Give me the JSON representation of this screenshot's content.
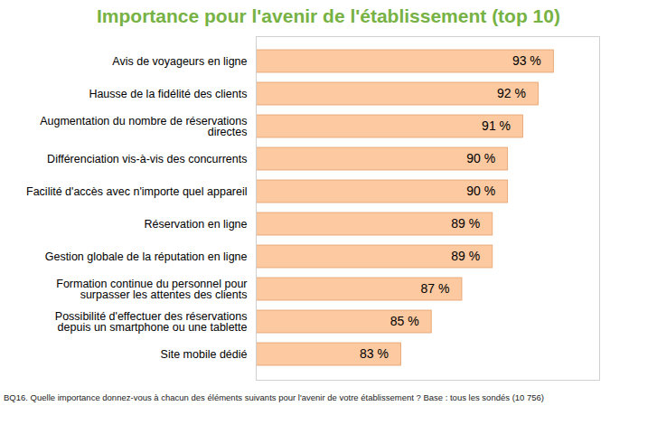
{
  "chart_data": {
    "type": "bar",
    "orientation": "horizontal",
    "title": "Importance pour l'avenir de l'établissement (top 10)",
    "caption": "BQ16. Quelle importance donnez-vous à chacun des éléments suivants pour l'avenir de votre établissement ? Base : tous les sondés (10 756)",
    "categories": [
      "Avis de voyageurs en ligne",
      "Hausse de la fidélité des clients",
      "Augmentation du nombre de réservations directes",
      "Différenciation vis-à-vis des concurrents",
      "Facilité d'accès avec n'importe quel appareil",
      "Réservation en ligne",
      "Gestion globale de la réputation en ligne",
      "Formation continue du personnel pour surpasser les attentes des clients",
      "Possibilité d'effectuer des réservations depuis un smartphone ou une tablette",
      "Site mobile dédié"
    ],
    "values": [
      93,
      92,
      91,
      90,
      90,
      89,
      89,
      87,
      85,
      83
    ],
    "value_labels": [
      "93 %",
      "92 %",
      "91 %",
      "90 %",
      "90 %",
      "89 %",
      "89 %",
      "87 %",
      "85 %",
      "83 %"
    ],
    "color": "#fcc9a0",
    "xlim": [
      73.5,
      96
    ],
    "xticks": [],
    "data_labels": true,
    "tick_labels": "y",
    "grid": false
  }
}
